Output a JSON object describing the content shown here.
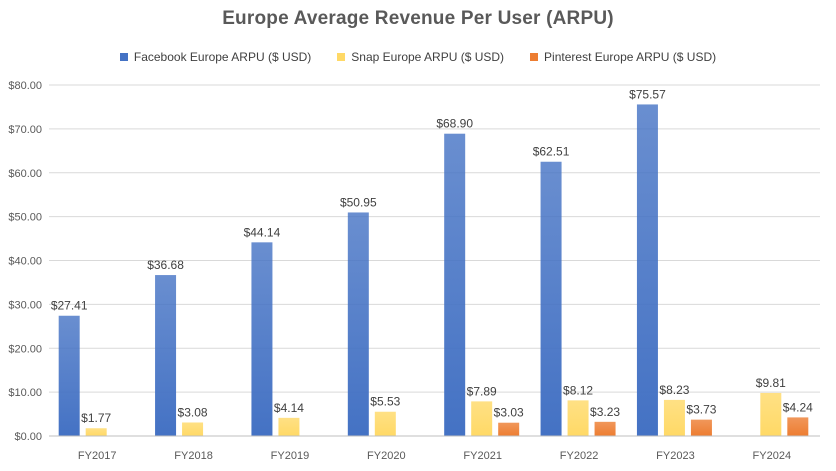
{
  "chart_data": {
    "type": "bar",
    "title": "Europe  Average Revenue Per User (ARPU)",
    "xlabel": "",
    "ylabel": "",
    "ylim": [
      0,
      80
    ],
    "yticks": [
      "$0.00",
      "$10.00",
      "$20.00",
      "$30.00",
      "$40.00",
      "$50.00",
      "$60.00",
      "$70.00",
      "$80.00"
    ],
    "ytick_values": [
      0,
      10,
      20,
      30,
      40,
      50,
      60,
      70,
      80
    ],
    "grid": true,
    "legend_position": "top",
    "categories": [
      "FY2017",
      "FY2018",
      "FY2019",
      "FY2020",
      "FY2021",
      "FY2022",
      "FY2023",
      "FY2024"
    ],
    "series": [
      {
        "name": "Facebook Europe ARPU ($ USD)",
        "color": "#4472c4",
        "values": [
          27.41,
          36.68,
          44.14,
          50.95,
          68.9,
          62.51,
          75.57,
          null
        ],
        "labels": [
          "$27.41",
          "$36.68",
          "$44.14",
          "$50.95",
          "$68.90",
          "$62.51",
          "$75.57",
          ""
        ]
      },
      {
        "name": "Snap Europe ARPU ($ USD)",
        "color": "#ffd966",
        "values": [
          1.77,
          3.08,
          4.14,
          5.53,
          7.89,
          8.12,
          8.23,
          9.81
        ],
        "labels": [
          "$1.77",
          "$3.08",
          "$4.14",
          "$5.53",
          "$7.89",
          "$8.12",
          "$8.23",
          "$9.81"
        ]
      },
      {
        "name": "Pinterest Europe ARPU ($ USD)",
        "color": "#ed7d31",
        "values": [
          null,
          null,
          null,
          null,
          3.03,
          3.23,
          3.73,
          4.24
        ],
        "labels": [
          "",
          "",
          "",
          "",
          "$3.03",
          "$3.23",
          "$3.73",
          "$4.24"
        ]
      }
    ]
  }
}
